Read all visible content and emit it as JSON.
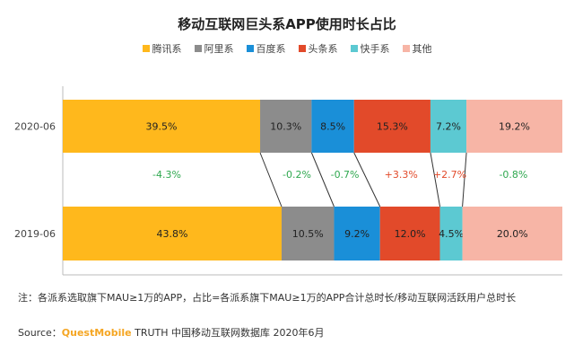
{
  "chart_data": {
    "type": "bar",
    "orientation": "horizontal-stacked-100",
    "title": "移动互联网巨头系APP使用时长占比",
    "legend_position": "top",
    "categories": [
      "2020-06",
      "2019-06"
    ],
    "series": [
      {
        "name": "腾讯系",
        "color": "#FFB81C",
        "values": [
          39.5,
          43.8
        ],
        "labels": [
          "39.5%",
          "43.8%"
        ],
        "change": "-4.3%"
      },
      {
        "name": "阿里系",
        "color": "#8C8C8C",
        "values": [
          10.3,
          10.5
        ],
        "labels": [
          "10.3%",
          "10.5%"
        ],
        "change": "-0.2%"
      },
      {
        "name": "百度系",
        "color": "#1A8FD8",
        "values": [
          8.5,
          9.2
        ],
        "labels": [
          "8.5%",
          "9.2%"
        ],
        "change": "-0.7%"
      },
      {
        "name": "头条系",
        "color": "#E24A2A",
        "values": [
          15.3,
          12.0
        ],
        "labels": [
          "15.3%",
          "12.0%"
        ],
        "change": "+3.3%"
      },
      {
        "name": "快手系",
        "color": "#5CC9D2",
        "values": [
          7.2,
          4.5
        ],
        "labels": [
          "7.2%",
          "4.5%"
        ],
        "change": "+2.7%"
      },
      {
        "name": "其他",
        "color": "#F7B5A6",
        "values": [
          19.2,
          20.0
        ],
        "labels": [
          "19.2%",
          "20.0%"
        ],
        "change": "-0.8%"
      }
    ],
    "change_colors": {
      "negative": "#2FA84F",
      "positive": "#E24A2A"
    }
  },
  "note": "注：各派系选取旗下MAU≥1万的APP，占比=各派系旗下MAU≥1万的APP合计总时长/移动互联网活跃用户总时长",
  "source": {
    "prefix": "Source：",
    "brand": "QuestMobile",
    "rest": " TRUTH 中国移动互联网数据库 2020年6月"
  }
}
